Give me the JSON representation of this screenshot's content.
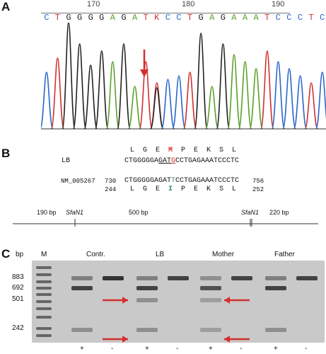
{
  "panels": {
    "a": "A",
    "b": "B",
    "c": "C"
  },
  "panel_a": {
    "ruler_labels": [
      "170",
      "180",
      "190"
    ],
    "bases": [
      "C",
      "T",
      "G",
      "G",
      "G",
      "G",
      "A",
      "G",
      "A",
      "T",
      "K",
      "C",
      "C",
      "T",
      "G",
      "A",
      "G",
      "A",
      "A",
      "A",
      "T",
      "C",
      "C",
      "C",
      "T",
      "C"
    ],
    "base_colors": {
      "A": "#5aa02c",
      "C": "#2a66c9",
      "G": "#222222",
      "T": "#d32f2f",
      "K": "#d32f2f"
    }
  },
  "panel_b": {
    "aa_top": [
      "L",
      "G",
      "E",
      "M",
      "P",
      "E",
      "K",
      "S",
      "L"
    ],
    "aa_top_highlight": "M",
    "lb_label": "LB",
    "lb_seq_pre": "CTGGGGGA",
    "lb_seq_under": "GAT",
    "lb_seq_mut": "G",
    "lb_seq_post": "CCTGAGAAATCCCTC",
    "ref_label": "NM_005267",
    "ref_start": "730",
    "ref_seq_pre": "CTGGGGGAGAT",
    "ref_seq_mut": "T",
    "ref_seq_post": "CCTGAGAAATCCCTC",
    "ref_end": "756",
    "aa_start": "244",
    "aa_bottom": [
      "L",
      "G",
      "E",
      "I",
      "P",
      "E",
      "K",
      "S",
      "L"
    ],
    "aa_bottom_highlight": "I",
    "aa_end": "252",
    "map_left": "190 bp",
    "map_site1": "SfaN1",
    "map_mid": "500 bp",
    "map_site2": "SfaN1",
    "map_right": "220 bp"
  },
  "panel_c": {
    "bp_header": "bp",
    "marker_header": "M",
    "size_labels": [
      "883",
      "692",
      "501",
      "242"
    ],
    "group_labels": [
      "Contr.",
      "LB",
      "Mother",
      "Father"
    ],
    "lane_signs": [
      "+",
      "-",
      "+",
      "-",
      "+",
      "-",
      "+",
      "-"
    ]
  }
}
